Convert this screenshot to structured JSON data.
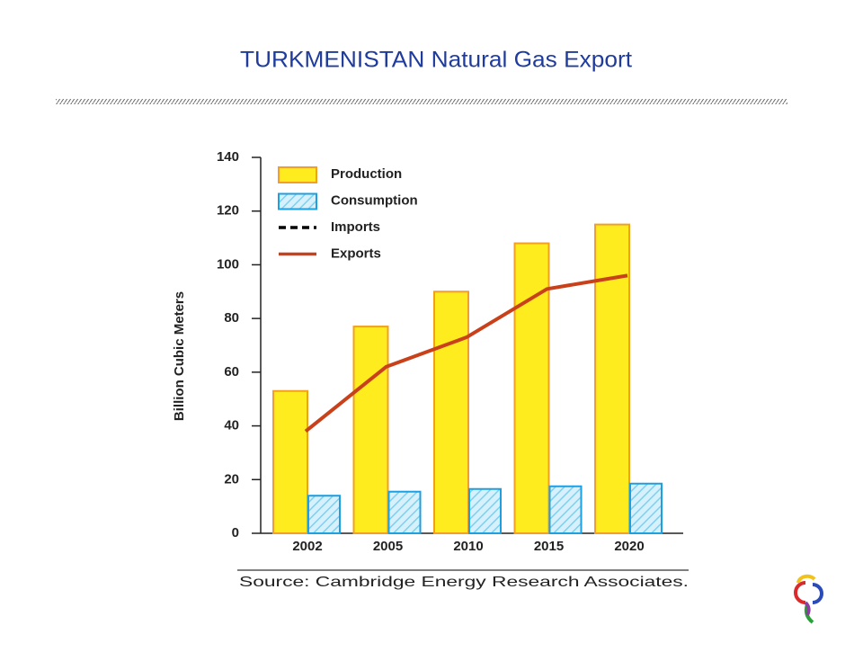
{
  "page": {
    "title": "TURKMENISTAN Natural Gas Export"
  },
  "chart_data": {
    "type": "bar",
    "ylabel": "Billion Cubic Meters",
    "categories": [
      "2002",
      "2005",
      "2010",
      "2015",
      "2020"
    ],
    "series": [
      {
        "name": "Production",
        "type": "bar",
        "color": "#ffec1f",
        "edgecolor": "#f3a020",
        "values": [
          53,
          77,
          90,
          108,
          115
        ]
      },
      {
        "name": "Consumption",
        "type": "bar",
        "color": "#cfeefa",
        "edgecolor": "#1ea0e0",
        "hatch": true,
        "values": [
          14,
          15.5,
          16.5,
          17.5,
          18.5
        ]
      },
      {
        "name": "Imports",
        "type": "line",
        "color": "#000000",
        "linestyle": "dashed",
        "values": [
          null,
          null,
          null,
          null,
          null
        ]
      },
      {
        "name": "Exports",
        "type": "line",
        "color": "#c9411b",
        "linestyle": "solid",
        "values": [
          38,
          62,
          73,
          91,
          96
        ]
      }
    ],
    "ylim": [
      0,
      140
    ],
    "yticks": [
      0,
      20,
      40,
      60,
      80,
      100,
      120,
      140
    ],
    "grid": false,
    "legend": "upper left",
    "source": "Source: Cambridge Energy Research Associates."
  }
}
